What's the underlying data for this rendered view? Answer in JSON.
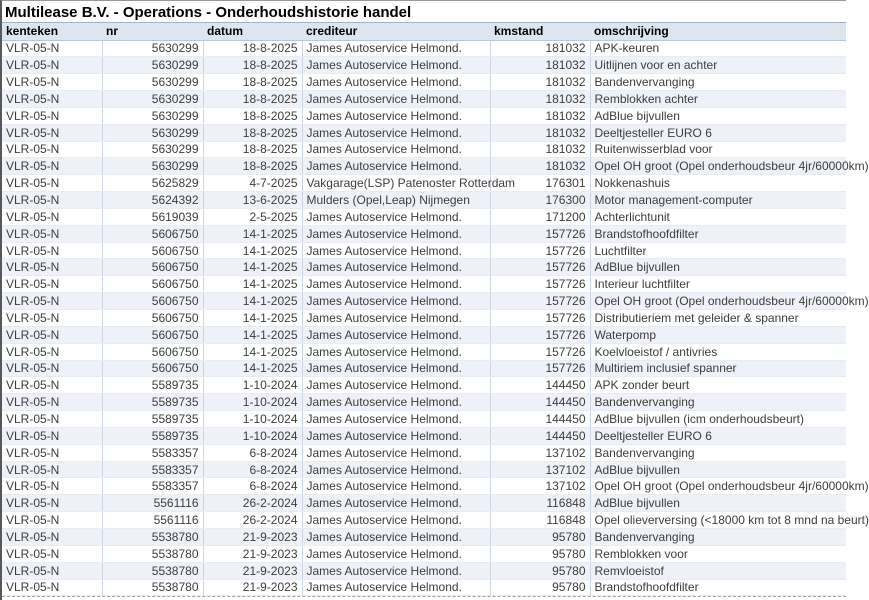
{
  "title": "Multilease B.V. - Operations - Onderhoudshistorie handel",
  "colors": {
    "header_bg": "#dce5f0",
    "row_alt_bg": "#eef2f8",
    "grid_line": "#ccd6e3",
    "text_color": "#3d3d3d",
    "page_break": "#a0a0a0"
  },
  "table": {
    "columns": [
      {
        "key": "kenteken",
        "label": "kenteken",
        "align": "left"
      },
      {
        "key": "nr",
        "label": "nr",
        "align": "right"
      },
      {
        "key": "datum",
        "label": "datum",
        "align": "right"
      },
      {
        "key": "crediteur",
        "label": "crediteur",
        "align": "left"
      },
      {
        "key": "kmstand",
        "label": "kmstand",
        "align": "right"
      },
      {
        "key": "omschrijving",
        "label": "omschrijving",
        "align": "left"
      }
    ],
    "rows": [
      {
        "kenteken": "VLR-05-N",
        "nr": "5630299",
        "datum": "18-8-2025",
        "crediteur": "James Autoservice Helmond.",
        "kmstand": "181032",
        "omschrijving": "APK-keuren"
      },
      {
        "kenteken": "VLR-05-N",
        "nr": "5630299",
        "datum": "18-8-2025",
        "crediteur": "James Autoservice Helmond.",
        "kmstand": "181032",
        "omschrijving": "Uitlijnen voor en achter"
      },
      {
        "kenteken": "VLR-05-N",
        "nr": "5630299",
        "datum": "18-8-2025",
        "crediteur": "James Autoservice Helmond.",
        "kmstand": "181032",
        "omschrijving": "Bandenvervanging"
      },
      {
        "kenteken": "VLR-05-N",
        "nr": "5630299",
        "datum": "18-8-2025",
        "crediteur": "James Autoservice Helmond.",
        "kmstand": "181032",
        "omschrijving": "Remblokken achter"
      },
      {
        "kenteken": "VLR-05-N",
        "nr": "5630299",
        "datum": "18-8-2025",
        "crediteur": "James Autoservice Helmond.",
        "kmstand": "181032",
        "omschrijving": "AdBlue bijvullen"
      },
      {
        "kenteken": "VLR-05-N",
        "nr": "5630299",
        "datum": "18-8-2025",
        "crediteur": "James Autoservice Helmond.",
        "kmstand": "181032",
        "omschrijving": "Deeltjesteller EURO 6"
      },
      {
        "kenteken": "VLR-05-N",
        "nr": "5630299",
        "datum": "18-8-2025",
        "crediteur": "James Autoservice Helmond.",
        "kmstand": "181032",
        "omschrijving": "Ruitenwisserblad voor"
      },
      {
        "kenteken": "VLR-05-N",
        "nr": "5630299",
        "datum": "18-8-2025",
        "crediteur": "James Autoservice Helmond.",
        "kmstand": "181032",
        "omschrijving": "Opel OH groot (Opel onderhoudsbeur 4jr/60000km)"
      },
      {
        "kenteken": "VLR-05-N",
        "nr": "5625829",
        "datum": "4-7-2025",
        "crediteur": "Vakgarage(LSP) Patenoster Rotterdam",
        "kmstand": "176301",
        "omschrijving": "Nokkenashuis"
      },
      {
        "kenteken": "VLR-05-N",
        "nr": "5624392",
        "datum": "13-6-2025",
        "crediteur": "Mulders (Opel,Leap) Nijmegen",
        "kmstand": "176300",
        "omschrijving": "Motor management-computer"
      },
      {
        "kenteken": "VLR-05-N",
        "nr": "5619039",
        "datum": "2-5-2025",
        "crediteur": "James Autoservice Helmond.",
        "kmstand": "171200",
        "omschrijving": "Achterlichtunit"
      },
      {
        "kenteken": "VLR-05-N",
        "nr": "5606750",
        "datum": "14-1-2025",
        "crediteur": "James Autoservice Helmond.",
        "kmstand": "157726",
        "omschrijving": "Brandstofhoofdfilter"
      },
      {
        "kenteken": "VLR-05-N",
        "nr": "5606750",
        "datum": "14-1-2025",
        "crediteur": "James Autoservice Helmond.",
        "kmstand": "157726",
        "omschrijving": "Luchtfilter"
      },
      {
        "kenteken": "VLR-05-N",
        "nr": "5606750",
        "datum": "14-1-2025",
        "crediteur": "James Autoservice Helmond.",
        "kmstand": "157726",
        "omschrijving": "AdBlue bijvullen"
      },
      {
        "kenteken": "VLR-05-N",
        "nr": "5606750",
        "datum": "14-1-2025",
        "crediteur": "James Autoservice Helmond.",
        "kmstand": "157726",
        "omschrijving": "Interieur luchtfilter"
      },
      {
        "kenteken": "VLR-05-N",
        "nr": "5606750",
        "datum": "14-1-2025",
        "crediteur": "James Autoservice Helmond.",
        "kmstand": "157726",
        "omschrijving": "Opel OH groot (Opel onderhoudsbeur 4jr/60000km)"
      },
      {
        "kenteken": "VLR-05-N",
        "nr": "5606750",
        "datum": "14-1-2025",
        "crediteur": "James Autoservice Helmond.",
        "kmstand": "157726",
        "omschrijving": "Distributieriem met geleider & spanner"
      },
      {
        "kenteken": "VLR-05-N",
        "nr": "5606750",
        "datum": "14-1-2025",
        "crediteur": "James Autoservice Helmond.",
        "kmstand": "157726",
        "omschrijving": "Waterpomp"
      },
      {
        "kenteken": "VLR-05-N",
        "nr": "5606750",
        "datum": "14-1-2025",
        "crediteur": "James Autoservice Helmond.",
        "kmstand": "157726",
        "omschrijving": "Koelvloeistof / antivries"
      },
      {
        "kenteken": "VLR-05-N",
        "nr": "5606750",
        "datum": "14-1-2025",
        "crediteur": "James Autoservice Helmond.",
        "kmstand": "157726",
        "omschrijving": "Multiriem inclusief spanner"
      },
      {
        "kenteken": "VLR-05-N",
        "nr": "5589735",
        "datum": "1-10-2024",
        "crediteur": "James Autoservice Helmond.",
        "kmstand": "144450",
        "omschrijving": "APK zonder beurt"
      },
      {
        "kenteken": "VLR-05-N",
        "nr": "5589735",
        "datum": "1-10-2024",
        "crediteur": "James Autoservice Helmond.",
        "kmstand": "144450",
        "omschrijving": "Bandenvervanging"
      },
      {
        "kenteken": "VLR-05-N",
        "nr": "5589735",
        "datum": "1-10-2024",
        "crediteur": "James Autoservice Helmond.",
        "kmstand": "144450",
        "omschrijving": "AdBlue bijvullen (icm onderhoudsbeurt)"
      },
      {
        "kenteken": "VLR-05-N",
        "nr": "5589735",
        "datum": "1-10-2024",
        "crediteur": "James Autoservice Helmond.",
        "kmstand": "144450",
        "omschrijving": "Deeltjesteller EURO 6"
      },
      {
        "kenteken": "VLR-05-N",
        "nr": "5583357",
        "datum": "6-8-2024",
        "crediteur": "James Autoservice Helmond.",
        "kmstand": "137102",
        "omschrijving": "Bandenvervanging"
      },
      {
        "kenteken": "VLR-05-N",
        "nr": "5583357",
        "datum": "6-8-2024",
        "crediteur": "James Autoservice Helmond.",
        "kmstand": "137102",
        "omschrijving": "AdBlue bijvullen"
      },
      {
        "kenteken": "VLR-05-N",
        "nr": "5583357",
        "datum": "6-8-2024",
        "crediteur": "James Autoservice Helmond.",
        "kmstand": "137102",
        "omschrijving": "Opel OH groot (Opel onderhoudsbeur 4jr/60000km)"
      },
      {
        "kenteken": "VLR-05-N",
        "nr": "5561116",
        "datum": "26-2-2024",
        "crediteur": "James Autoservice Helmond.",
        "kmstand": "116848",
        "omschrijving": "AdBlue bijvullen"
      },
      {
        "kenteken": "VLR-05-N",
        "nr": "5561116",
        "datum": "26-2-2024",
        "crediteur": "James Autoservice Helmond.",
        "kmstand": "116848",
        "omschrijving": "Opel olieverversing (<18000 km tot 8 mnd na beurt)"
      },
      {
        "kenteken": "VLR-05-N",
        "nr": "5538780",
        "datum": "21-9-2023",
        "crediteur": "James Autoservice Helmond.",
        "kmstand": "95780",
        "omschrijving": "Bandenvervanging"
      },
      {
        "kenteken": "VLR-05-N",
        "nr": "5538780",
        "datum": "21-9-2023",
        "crediteur": "James Autoservice Helmond.",
        "kmstand": "95780",
        "omschrijving": "Remblokken voor"
      },
      {
        "kenteken": "VLR-05-N",
        "nr": "5538780",
        "datum": "21-9-2023",
        "crediteur": "James Autoservice Helmond.",
        "kmstand": "95780",
        "omschrijving": "Remvloeistof"
      },
      {
        "kenteken": "VLR-05-N",
        "nr": "5538780",
        "datum": "21-9-2023",
        "crediteur": "James Autoservice Helmond.",
        "kmstand": "95780",
        "omschrijving": "Brandstofhoofdfilter"
      }
    ]
  }
}
